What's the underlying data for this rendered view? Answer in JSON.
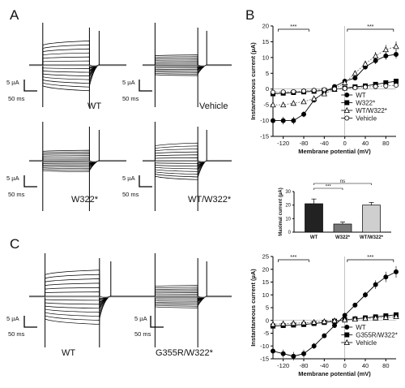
{
  "panel_letters": {
    "a": "A",
    "b": "B",
    "c": "C"
  },
  "traces": [
    {
      "label": "WT",
      "scale_current": "5 µA",
      "scale_time": "50 ms",
      "amp": 1.0
    },
    {
      "label": "Vehicle",
      "scale_current": "5 µA",
      "scale_time": "50 ms",
      "amp": 0.18
    },
    {
      "label": "W322*",
      "scale_current": "5 µA",
      "scale_time": "50 ms",
      "amp": 0.25
    },
    {
      "label": "WT/W322*",
      "scale_current": "5 µA",
      "scale_time": "50 ms",
      "amp": 0.7
    },
    {
      "label": "WT",
      "scale_current": "5 µA",
      "scale_time": "50 ms",
      "amp": 1.1
    },
    {
      "label": "G355R/W322*",
      "scale_current": "5 µA",
      "scale_time": "50 ms",
      "amp": 0.22
    }
  ],
  "chart_data": [
    {
      "type": "line",
      "xlabel": "Membrane potential (mV)",
      "ylabel": "Instantaneous current (µA)",
      "xlim": [
        -140,
        100
      ],
      "ylim": [
        -15,
        20
      ],
      "xticks": [
        -120,
        -80,
        -40,
        0,
        40,
        80
      ],
      "yticks": [
        -15,
        -10,
        -5,
        0,
        5,
        10,
        15,
        20
      ],
      "x": [
        -140,
        -120,
        -100,
        -80,
        -60,
        -40,
        -20,
        0,
        20,
        40,
        60,
        80,
        100
      ],
      "series": [
        {
          "name": "WT",
          "marker": "filled-circle",
          "values": [
            -10,
            -10,
            -10,
            -8,
            -3.5,
            -1,
            0.8,
            2.5,
            3.5,
            7,
            9,
            10.5,
            11
          ]
        },
        {
          "name": "W322*",
          "marker": "filled-square",
          "values": [
            -1.5,
            -1.3,
            -1.1,
            -0.9,
            -0.7,
            -0.4,
            -0.1,
            0.3,
            0.7,
            1,
            1.5,
            2,
            2.5
          ]
        },
        {
          "name": "WT/W322*",
          "marker": "open-triangle",
          "values": [
            -5,
            -5,
            -4.5,
            -4,
            -3,
            -1.5,
            0,
            2,
            5,
            8,
            10.5,
            12.5,
            13.5
          ]
        },
        {
          "name": "Vehicle",
          "marker": "open-circle",
          "values": [
            -1,
            -0.9,
            -0.8,
            -0.6,
            -0.4,
            -0.2,
            0,
            0.2,
            0.4,
            0.6,
            0.8,
            1,
            1.2
          ]
        }
      ],
      "significance": [
        "***",
        "***"
      ],
      "legend_position": "bottom-right"
    },
    {
      "type": "bar",
      "categories": [
        "WT",
        "W322*",
        "WT/W322*"
      ],
      "values": [
        21,
        6,
        20
      ],
      "errors": [
        3.5,
        1.5,
        2
      ],
      "colors": [
        "#222222",
        "#777777",
        "#cfcfcf"
      ],
      "ylabel": "Maximal current (µA)",
      "ylim": [
        0,
        30
      ],
      "yticks": [
        0,
        10,
        20,
        30
      ],
      "significance": [
        "ns",
        "***"
      ]
    },
    {
      "type": "line",
      "xlabel": "Membrane potential (mV)",
      "ylabel": "Instantaneous current (µA)",
      "xlim": [
        -140,
        100
      ],
      "ylim": [
        -15,
        25
      ],
      "xticks": [
        -120,
        -80,
        -40,
        0,
        40,
        80
      ],
      "yticks": [
        -15,
        -10,
        -5,
        0,
        5,
        10,
        15,
        20,
        25
      ],
      "x": [
        -140,
        -120,
        -100,
        -80,
        -60,
        -40,
        -20,
        0,
        20,
        40,
        60,
        80,
        100
      ],
      "series": [
        {
          "name": "WT",
          "marker": "filled-circle",
          "values": [
            -12,
            -13,
            -14,
            -13,
            -10,
            -6,
            -2,
            2,
            6,
            10,
            14,
            17,
            19
          ]
        },
        {
          "name": "G355R/W322*",
          "marker": "filled-square",
          "values": [
            -2.2,
            -2,
            -1.8,
            -1.6,
            -1.2,
            -0.8,
            -0.3,
            0.2,
            0.6,
            1,
            1.4,
            1.8,
            2.2
          ]
        },
        {
          "name": "Vehicle",
          "marker": "open-triangle",
          "values": [
            -1.5,
            -1.3,
            -1.1,
            -0.9,
            -0.7,
            -0.4,
            -0.1,
            0.2,
            0.5,
            0.8,
            1,
            1.2,
            1.5
          ]
        }
      ],
      "significance": [
        "***",
        "***"
      ],
      "legend_position": "bottom-right"
    }
  ]
}
